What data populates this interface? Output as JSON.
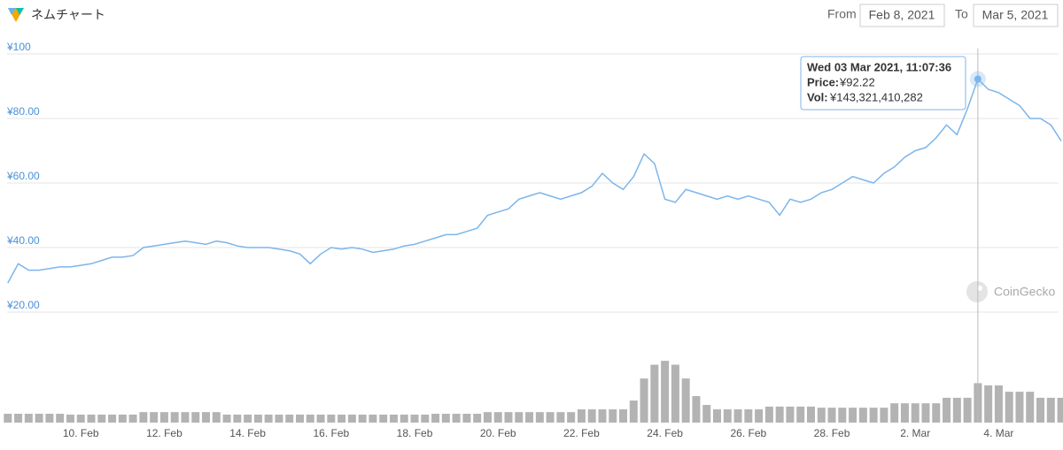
{
  "header": {
    "title": "ネムチャート",
    "from_label": "From",
    "from_value": "Feb 8, 2021",
    "to_label": "To",
    "to_value": "Mar 5, 2021"
  },
  "watermark": "CoinGecko",
  "chart_data": {
    "type": "line",
    "categories": [
      null,
      null,
      null,
      null,
      null,
      null,
      null,
      "10. Feb",
      null,
      null,
      null,
      null,
      null,
      null,
      null,
      "12. Feb",
      null,
      null,
      null,
      null,
      null,
      null,
      null,
      "14. Feb",
      null,
      null,
      null,
      null,
      null,
      null,
      null,
      "16. Feb",
      null,
      null,
      null,
      null,
      null,
      null,
      null,
      "18. Feb",
      null,
      null,
      null,
      null,
      null,
      null,
      null,
      "20. Feb",
      null,
      null,
      null,
      null,
      null,
      null,
      null,
      "22. Feb",
      null,
      null,
      null,
      null,
      null,
      null,
      null,
      "24. Feb",
      null,
      null,
      null,
      null,
      null,
      null,
      null,
      "26. Feb",
      null,
      null,
      null,
      null,
      null,
      null,
      null,
      "28. Feb",
      null,
      null,
      null,
      null,
      null,
      null,
      null,
      "2. Mar",
      null,
      null,
      null,
      null,
      null,
      null,
      null,
      "4. Mar",
      null,
      null,
      null,
      null,
      null,
      null
    ],
    "values": [
      29,
      35,
      33,
      33,
      33.5,
      34,
      34,
      34.5,
      35,
      36,
      37,
      37,
      37.5,
      40,
      40.5,
      41,
      41.5,
      42,
      41.5,
      41,
      42,
      41.5,
      40.5,
      40,
      40,
      40,
      39.5,
      39,
      38,
      35,
      38,
      40,
      39.5,
      40,
      39.5,
      38.5,
      39,
      39.5,
      40.5,
      41,
      42,
      43,
      44,
      44,
      45,
      46,
      50,
      51,
      52,
      55,
      56,
      57,
      56,
      55,
      56,
      57,
      59,
      63,
      60,
      58,
      62,
      69,
      66,
      55,
      54,
      58,
      57,
      56,
      55,
      56,
      55,
      56,
      55,
      54,
      50,
      55,
      54,
      55,
      57,
      58,
      60,
      62,
      61,
      60,
      63,
      65,
      68,
      70,
      71,
      74,
      78,
      75,
      83,
      92.22,
      89,
      88,
      86,
      84,
      80,
      80,
      78,
      73
    ],
    "color": "#7cb5ec",
    "volume": [
      32000000000.0,
      32000000000.0,
      32000000000.0,
      32000000000.0,
      32000000000.0,
      32000000000.0,
      29000000000.0,
      29000000000.0,
      29000000000.0,
      29000000000.0,
      29000000000.0,
      29000000000.0,
      29000000000.0,
      38000000000.0,
      38000000000.0,
      38000000000.0,
      38000000000.0,
      38000000000.0,
      38000000000.0,
      38000000000.0,
      38000000000.0,
      29000000000.0,
      29000000000.0,
      29000000000.0,
      29000000000.0,
      29000000000.0,
      29000000000.0,
      29000000000.0,
      29000000000.0,
      29000000000.0,
      29000000000.0,
      29000000000.0,
      29000000000.0,
      29000000000.0,
      29000000000.0,
      29000000000.0,
      29000000000.0,
      29000000000.0,
      29000000000.0,
      29000000000.0,
      29000000000.0,
      32000000000.0,
      32000000000.0,
      32000000000.0,
      32000000000.0,
      32000000000.0,
      38000000000.0,
      38000000000.0,
      38000000000.0,
      38000000000.0,
      38000000000.0,
      38000000000.0,
      38000000000.0,
      38000000000.0,
      38000000000.0,
      48000000000.0,
      48000000000.0,
      48000000000.0,
      48000000000.0,
      48000000000.0,
      80000000000.0,
      160000000000.0,
      210000000000.0,
      224000000000.0,
      210000000000.0,
      160000000000.0,
      96000000000.0,
      64000000000.0,
      48000000000.0,
      48000000000.0,
      48000000000.0,
      48000000000.0,
      48000000000.0,
      58000000000.0,
      58000000000.0,
      58000000000.0,
      58000000000.0,
      58000000000.0,
      54000000000.0,
      54000000000.0,
      54000000000.0,
      54000000000.0,
      54000000000.0,
      54000000000.0,
      54000000000.0,
      70000000000.0,
      70000000000.0,
      70000000000.0,
      70000000000.0,
      70000000000.0,
      90000000000.0,
      90000000000.0,
      90000000000.0,
      143000000000.0,
      135000000000.0,
      135000000000.0,
      112000000000.0,
      112000000000.0,
      112000000000.0,
      90000000000.0,
      90000000000.0,
      90000000000.0
    ],
    "volume_color": "#9a9a9a",
    "vlim": [
      0,
      340000000000
    ],
    "ylim": [
      20,
      100
    ],
    "yticks": [
      {
        "value": 20,
        "label": "¥20.00"
      },
      {
        "value": 40,
        "label": "¥40.00"
      },
      {
        "value": 60,
        "label": "¥60.00"
      },
      {
        "value": 80,
        "label": "¥80.00"
      },
      {
        "value": 100,
        "label": "¥100"
      }
    ],
    "grid": true,
    "tooltip": {
      "date": "Wed 03 Mar 2021, 11:07:36",
      "price_label": "Price:",
      "price": "¥92.22",
      "vol_label": "Vol:",
      "vol": "¥143,321,410,282"
    }
  }
}
